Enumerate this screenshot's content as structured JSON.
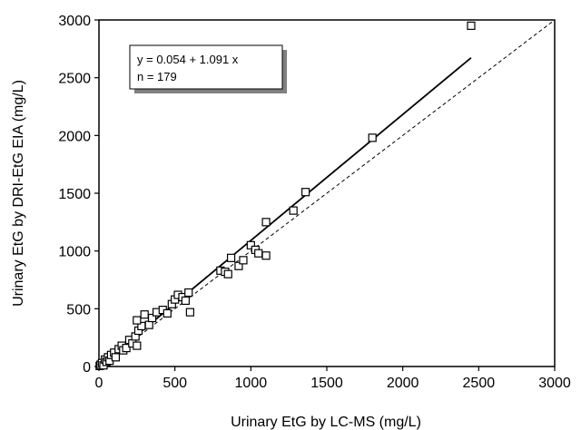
{
  "chart_data": {
    "type": "scatter",
    "xlabel": "Urinary EtG by LC-MS (mg/L)",
    "ylabel": "Urinary EtG by DRI-EtG EIA (mg/L)",
    "xlim": [
      0,
      3000
    ],
    "ylim": [
      0,
      3000
    ],
    "xticks": [
      "0",
      "500",
      "1000",
      "1500",
      "2000",
      "2500",
      "3000"
    ],
    "yticks": [
      "0",
      "500",
      "1000",
      "1500",
      "2000",
      "2500",
      "3000"
    ],
    "grid": false,
    "annotation": {
      "equation": "y = 0.054 + 1.091 x",
      "n": "n = 179"
    },
    "regression_line": {
      "intercept": 0.054,
      "slope": 1.091,
      "x_range": [
        0,
        2450
      ]
    },
    "identity_line": {
      "x_range": [
        0,
        3000
      ]
    },
    "points": [
      [
        5,
        5
      ],
      [
        10,
        15
      ],
      [
        20,
        30
      ],
      [
        30,
        10
      ],
      [
        40,
        60
      ],
      [
        50,
        40
      ],
      [
        60,
        80
      ],
      [
        70,
        50
      ],
      [
        80,
        100
      ],
      [
        100,
        120
      ],
      [
        110,
        80
      ],
      [
        130,
        150
      ],
      [
        150,
        180
      ],
      [
        160,
        140
      ],
      [
        180,
        160
      ],
      [
        200,
        230
      ],
      [
        220,
        200
      ],
      [
        240,
        260
      ],
      [
        250,
        180
      ],
      [
        260,
        310
      ],
      [
        280,
        350
      ],
      [
        300,
        450
      ],
      [
        330,
        360
      ],
      [
        350,
        420
      ],
      [
        380,
        470
      ],
      [
        420,
        490
      ],
      [
        450,
        460
      ],
      [
        480,
        540
      ],
      [
        500,
        580
      ],
      [
        520,
        620
      ],
      [
        550,
        600
      ],
      [
        570,
        570
      ],
      [
        590,
        640
      ],
      [
        600,
        470
      ],
      [
        250,
        400
      ],
      [
        800,
        830
      ],
      [
        830,
        820
      ],
      [
        850,
        800
      ],
      [
        870,
        940
      ],
      [
        920,
        870
      ],
      [
        950,
        920
      ],
      [
        1000,
        1050
      ],
      [
        1030,
        1010
      ],
      [
        1050,
        980
      ],
      [
        1100,
        960
      ],
      [
        1100,
        1250
      ],
      [
        1280,
        1350
      ],
      [
        1360,
        1510
      ],
      [
        1800,
        1980
      ],
      [
        2450,
        2950
      ]
    ]
  }
}
